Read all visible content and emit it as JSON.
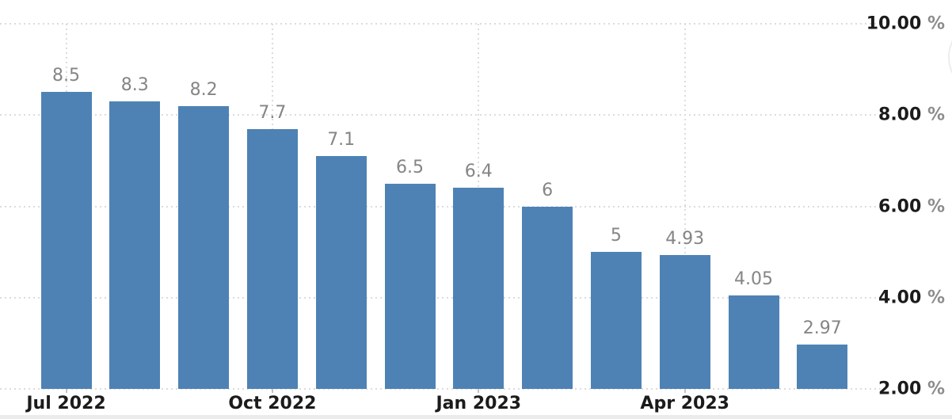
{
  "chart_data": {
    "type": "bar",
    "title": "",
    "unit": "%",
    "values": [
      8.5,
      8.3,
      8.2,
      7.7,
      7.1,
      6.5,
      6.4,
      6,
      5,
      4.93,
      4.05,
      2.97
    ],
    "value_labels": [
      "8.5",
      "8.3",
      "8.2",
      "7.7",
      "7.1",
      "6.5",
      "6.4",
      "6",
      "5",
      "4.93",
      "4.05",
      "2.97"
    ],
    "x_ticks": [
      {
        "bar_index": 0,
        "label": "Jul 2022"
      },
      {
        "bar_index": 3,
        "label": "Oct 2022"
      },
      {
        "bar_index": 6,
        "label": "Jan 2023"
      },
      {
        "bar_index": 9,
        "label": "Apr 2023"
      }
    ],
    "y_ticks": [
      {
        "value": 10,
        "label": "10.00",
        "suffix": "%"
      },
      {
        "value": 8,
        "label": "8.00",
        "suffix": "%"
      },
      {
        "value": 6,
        "label": "6.00",
        "suffix": "%"
      },
      {
        "value": 4,
        "label": "4.00",
        "suffix": "%"
      },
      {
        "value": 2,
        "label": "2.00",
        "suffix": "%"
      }
    ],
    "ylim": [
      2,
      10
    ],
    "grid": true,
    "legend": "none",
    "colors": {
      "bar": "#4e82b4",
      "value_label": "#858585",
      "axis_text": "#1b1b1b",
      "percent_suffix": "#8c8c8c",
      "gridline": "#dcdcdc",
      "tick": "#c2c2c2",
      "scrollbar_track": "#ebebeb",
      "background": "#ffffff"
    }
  }
}
